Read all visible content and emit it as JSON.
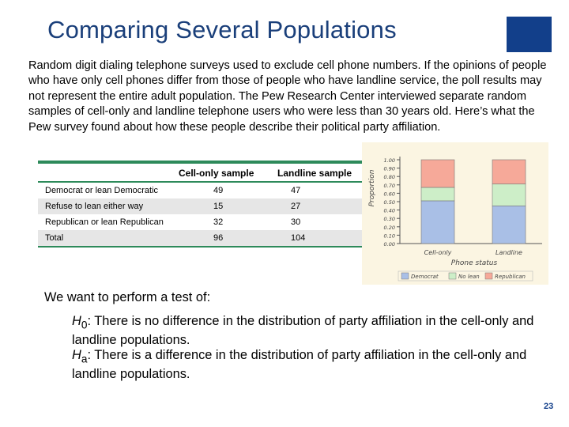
{
  "title": "Comparing Several Populations",
  "intro": "Random digit dialing telephone surveys used to exclude cell phone numbers. If the opinions of people who have only cell phones differ from those of people who have landline service, the poll results may not represent the entire adult population. The Pew Research Center interviewed separate random samples of cell-only and landline telephone users who were less than 30 years old. Here’s what the Pew survey found about how these people describe their political party affiliation.",
  "table": {
    "headers": [
      "Cell-only sample",
      "Landline sample"
    ],
    "rows": [
      {
        "label": "Democrat or lean Democratic",
        "cell": "49",
        "landline": "47"
      },
      {
        "label": "Refuse to lean either way",
        "cell": "15",
        "landline": "27"
      },
      {
        "label": "Republican or lean Republican",
        "cell": "32",
        "landline": "30"
      },
      {
        "label": "Total",
        "cell": "96",
        "landline": "104"
      }
    ]
  },
  "colors": {
    "title": "#1a3f7a",
    "brand": "#123f8a",
    "table_rule": "#2d8a5a",
    "democrat": "#a9bfe6",
    "no_lean": "#cdeec8",
    "republican": "#f6a999"
  },
  "chart_data": {
    "type": "bar",
    "stacked": true,
    "categories": [
      "Cell-only",
      "Landline"
    ],
    "series": [
      {
        "name": "Democrat",
        "values": [
          0.51,
          0.45
        ]
      },
      {
        "name": "No lean",
        "values": [
          0.16,
          0.26
        ]
      },
      {
        "name": "Republican",
        "values": [
          0.33,
          0.29
        ]
      }
    ],
    "xlabel": "Phone status",
    "ylabel": "Proportion",
    "yticks": [
      "0.00",
      "0.10",
      "0.20",
      "0.30",
      "0.40",
      "0.50",
      "0.60",
      "0.70",
      "0.80",
      "0.90",
      "1.00"
    ],
    "ylim": [
      0,
      1
    ],
    "legend_position": "bottom"
  },
  "test_intro": "We want to perform a test of:",
  "hypotheses": [
    {
      "symbol": "H",
      "sub": "0",
      "text": ": There is no difference in the distribution of party affiliation in the cell-only and landline populations."
    },
    {
      "symbol": "H",
      "sub": "a",
      "text": ": There is a difference in the distribution of party affiliation in the cell-only and landline populations."
    }
  ],
  "page_number": "23"
}
